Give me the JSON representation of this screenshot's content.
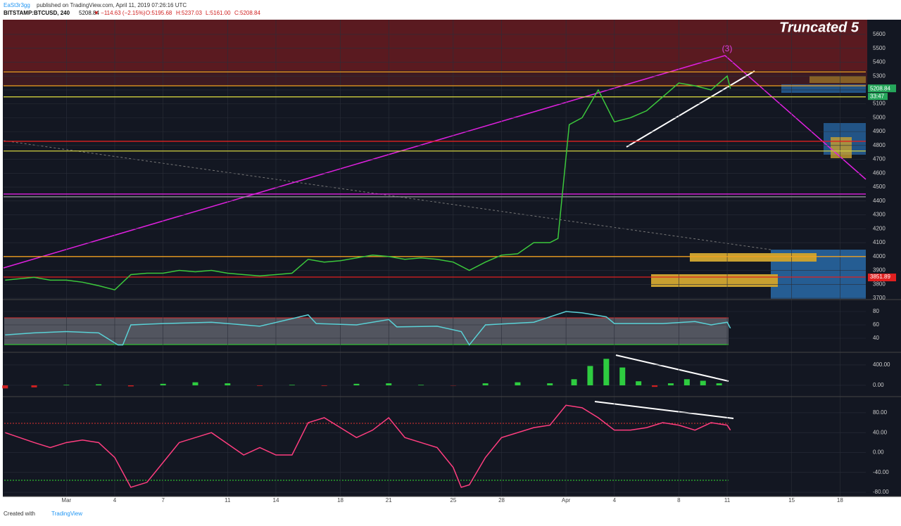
{
  "header": {
    "publisher": "EaSt3r3gg",
    "published": "published on TradingView.com, April 11, 2019 07:26:16 UTC",
    "symbol": "BITSTAMP:BTCUSD, 240",
    "last": "5208.84",
    "change": "▼ −114.63 (−2.15%)",
    "open": "O:5195.68",
    "high": "H:5237.03",
    "low": "L:5161.00",
    "close": "C:5208.84"
  },
  "annotations": {
    "banner": "Truncated 5",
    "wave": "(3)",
    "price_label": "5208.84",
    "countdown": "33:47",
    "level_label": "3851.89"
  },
  "footer": {
    "created": "Created with",
    "brand": "TradingView"
  },
  "xlim": [
    -2.9,
    50.6
  ],
  "xticks": [
    {
      "value": 1,
      "label": "Mar"
    },
    4,
    7,
    11,
    14,
    18,
    21,
    25,
    28,
    {
      "value": 32,
      "label": "Apr"
    },
    {
      "value": 35,
      "label": "4"
    },
    {
      "value": 39,
      "label": "8"
    },
    {
      "value": 42,
      "label": "11"
    },
    {
      "value": 46,
      "label": "15"
    },
    {
      "value": 49,
      "label": "18"
    }
  ],
  "chart_data": [
    {
      "type": "line",
      "name": "price",
      "color": "#3cc83c",
      "x": [
        -2.8,
        -1,
        0,
        1,
        2,
        3,
        4,
        5,
        6,
        7,
        8,
        9,
        10,
        11,
        12,
        13,
        14,
        15,
        16,
        17,
        18,
        19,
        20,
        21,
        22,
        23,
        24,
        25,
        26,
        27,
        28,
        29,
        30,
        31,
        31.5,
        32.2,
        33,
        34,
        35,
        36,
        37,
        38,
        39,
        40,
        41,
        42,
        42.2
      ],
      "values": [
        3830,
        3850,
        3830,
        3830,
        3815,
        3790,
        3760,
        3870,
        3880,
        3880,
        3900,
        3890,
        3900,
        3880,
        3870,
        3860,
        3870,
        3880,
        3980,
        3960,
        3970,
        3990,
        4010,
        4000,
        3980,
        3990,
        3980,
        3960,
        3900,
        3960,
        4010,
        4020,
        4100,
        4100,
        4130,
        4950,
        5000,
        5200,
        4970,
        5000,
        5050,
        5150,
        5250,
        5230,
        5200,
        5300,
        5208.84
      ],
      "levels": [
        {
          "value": 5330,
          "color": "#f0a020"
        },
        {
          "value": 5230,
          "color": "#f0a020"
        },
        {
          "value": 5150,
          "color": "#e0e040"
        },
        {
          "value": 4830,
          "color": "#e02020"
        },
        {
          "value": 4760,
          "color": "#d0d040"
        },
        {
          "value": 4450,
          "color": "#e020e0"
        },
        {
          "value": 4430,
          "color": "#9a9aa0"
        },
        {
          "value": 4000,
          "color": "#f0a020"
        },
        {
          "value": 3851.89,
          "color": "#e02020"
        }
      ],
      "ylim": [
        3695,
        5706
      ],
      "yticks": [
        3700,
        3800,
        3900,
        4000,
        4100,
        4200,
        4300,
        4400,
        4500,
        4600,
        4700,
        4800,
        4900,
        5000,
        5100,
        5200,
        5300,
        5400,
        5500,
        5600
      ]
    },
    {
      "type": "line",
      "name": "rsi",
      "color": "#5ad1d6",
      "x": [
        -2.8,
        -1,
        1,
        3,
        4.2,
        4.5,
        5,
        7,
        10,
        13,
        16,
        16.5,
        19,
        21,
        21.5,
        24,
        25.5,
        26,
        27,
        30,
        32,
        33,
        34.5,
        35,
        38,
        40,
        41,
        42,
        42.2
      ],
      "values": [
        45,
        48,
        50,
        48,
        30,
        30,
        60,
        62,
        64,
        58,
        75,
        62,
        60,
        68,
        57,
        58,
        50,
        30,
        60,
        64,
        80,
        78,
        72,
        62,
        62,
        65,
        60,
        64,
        55
      ],
      "ylim": [
        20,
        95.8
      ],
      "yticks": [
        40,
        60,
        80
      ]
    },
    {
      "type": "bar",
      "name": "macd",
      "up_color": "#2ecc40",
      "down_color": "#d02020",
      "x": [
        -2.8,
        -1,
        1,
        3,
        5,
        7,
        9,
        11,
        13,
        15,
        17,
        19,
        21,
        23,
        25,
        27,
        29,
        31,
        32.5,
        33.5,
        34.5,
        35.5,
        36.5,
        37.5,
        38.5,
        39.5,
        40.5,
        41.5
      ],
      "values": [
        -60,
        -40,
        10,
        20,
        -20,
        30,
        60,
        40,
        -10,
        10,
        -10,
        30,
        40,
        10,
        -5,
        40,
        60,
        40,
        120,
        380,
        520,
        350,
        80,
        -30,
        40,
        120,
        90,
        40
      ],
      "ylim": [
        -207,
        634
      ],
      "yticks": [
        {
          "value": 0,
          "label": "0.00"
        },
        {
          "value": 400,
          "label": "400.00"
        }
      ]
    },
    {
      "type": "line",
      "name": "oscillator",
      "color": "#ff3d7f",
      "x": [
        -2.8,
        -1,
        0,
        1,
        2,
        3,
        4,
        5,
        6,
        8,
        10,
        12,
        13,
        14,
        15,
        16,
        17,
        18,
        19,
        20,
        21,
        22,
        23,
        24,
        25,
        25.5,
        26,
        27,
        28,
        30,
        31,
        32,
        33,
        34,
        35,
        36,
        37,
        38,
        39,
        40,
        41,
        42,
        42.2
      ],
      "values": [
        40,
        20,
        10,
        20,
        25,
        20,
        -10,
        -70,
        -60,
        20,
        40,
        -5,
        10,
        -5,
        -5,
        60,
        70,
        50,
        30,
        45,
        70,
        30,
        20,
        10,
        -30,
        -70,
        -65,
        -10,
        30,
        50,
        55,
        95,
        90,
        70,
        45,
        45,
        50,
        60,
        55,
        45,
        60,
        55,
        45
      ],
      "ylim": [
        -87,
        111
      ],
      "yticks": [
        {
          "value": -80,
          "label": "-80.00"
        },
        {
          "value": -40,
          "label": "-40.00"
        },
        {
          "value": 0,
          "label": "0.00"
        },
        {
          "value": 40,
          "label": "40.00"
        },
        {
          "value": 80,
          "label": "80.00"
        }
      ]
    }
  ]
}
